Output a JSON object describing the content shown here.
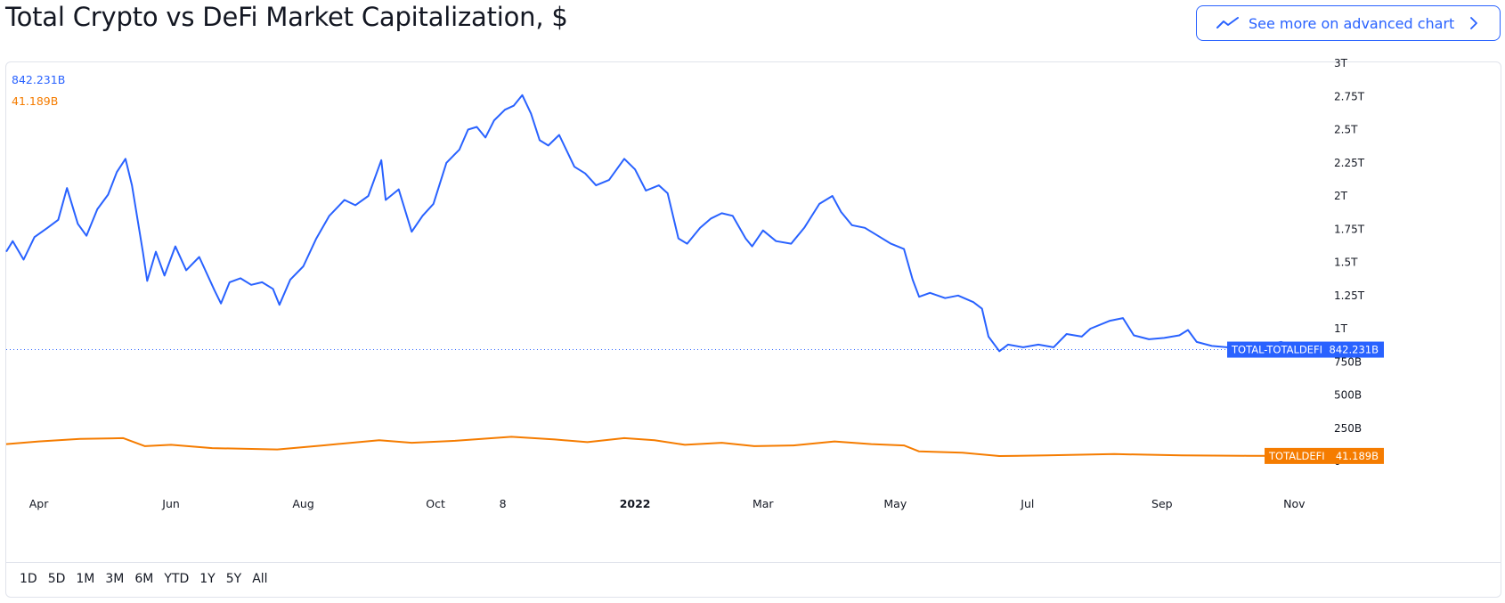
{
  "title": "Total Crypto vs DeFi Market Capitalization, $",
  "advanced_button": {
    "label": "See more on advanced chart",
    "icon": "trend-line-icon",
    "chevron": "chevron-right-icon"
  },
  "legend": {
    "total_value": "842.231B",
    "defi_value": "41.189B"
  },
  "colors": {
    "total": "#2962ff",
    "defi": "#f57c00",
    "grid": "#f0f3fa",
    "text": "#131722",
    "accent": "#2962ff"
  },
  "range_buttons": [
    "1D",
    "5D",
    "1M",
    "3M",
    "6M",
    "YTD",
    "1Y",
    "5Y",
    "All"
  ],
  "chart_data": {
    "type": "line",
    "title": "Total Crypto vs DeFi Market Capitalization, $",
    "ylim": [
      0,
      3000
    ],
    "y_unit": "B",
    "y_ticks": [
      {
        "value": 3000,
        "label": "3T"
      },
      {
        "value": 2750,
        "label": "2.75T"
      },
      {
        "value": 2500,
        "label": "2.5T"
      },
      {
        "value": 2250,
        "label": "2.25T"
      },
      {
        "value": 2000,
        "label": "2T"
      },
      {
        "value": 1750,
        "label": "1.75T"
      },
      {
        "value": 1500,
        "label": "1.5T"
      },
      {
        "value": 1250,
        "label": "1.25T"
      },
      {
        "value": 1000,
        "label": "1T"
      },
      {
        "value": 750,
        "label": "750B"
      },
      {
        "value": 500,
        "label": "500B"
      },
      {
        "value": 250,
        "label": "250B"
      },
      {
        "value": 0,
        "label": "0"
      }
    ],
    "x_ticks": [
      {
        "date": "2021-04-01",
        "label": "Apr"
      },
      {
        "date": "2021-06-01",
        "label": "Jun"
      },
      {
        "date": "2021-08-01",
        "label": "Aug"
      },
      {
        "date": "2021-10-01",
        "label": "Oct"
      },
      {
        "date": "2021-11-01",
        "label": "8"
      },
      {
        "date": "2022-01-01",
        "label": "2022",
        "bold": true
      },
      {
        "date": "2022-03-01",
        "label": "Mar"
      },
      {
        "date": "2022-05-01",
        "label": "May"
      },
      {
        "date": "2022-07-01",
        "label": "Jul"
      },
      {
        "date": "2022-09-01",
        "label": "Sep"
      },
      {
        "date": "2022-11-01",
        "label": "Nov"
      }
    ],
    "xlim": [
      "2021-03-17",
      "2022-11-14"
    ],
    "series": [
      {
        "name": "TOTAL-TOTALDEFI",
        "last_label": "842.231B",
        "points": [
          [
            "2021-03-17",
            1580
          ],
          [
            "2021-03-20",
            1660
          ],
          [
            "2021-03-25",
            1520
          ],
          [
            "2021-03-30",
            1690
          ],
          [
            "2021-04-05",
            1760
          ],
          [
            "2021-04-10",
            1820
          ],
          [
            "2021-04-14",
            2060
          ],
          [
            "2021-04-19",
            1790
          ],
          [
            "2021-04-23",
            1700
          ],
          [
            "2021-04-28",
            1900
          ],
          [
            "2021-05-03",
            2010
          ],
          [
            "2021-05-07",
            2180
          ],
          [
            "2021-05-11",
            2280
          ],
          [
            "2021-05-14",
            2080
          ],
          [
            "2021-05-19",
            1580
          ],
          [
            "2021-05-21",
            1360
          ],
          [
            "2021-05-25",
            1580
          ],
          [
            "2021-05-29",
            1400
          ],
          [
            "2021-06-03",
            1620
          ],
          [
            "2021-06-08",
            1440
          ],
          [
            "2021-06-14",
            1540
          ],
          [
            "2021-06-21",
            1290
          ],
          [
            "2021-06-24",
            1190
          ],
          [
            "2021-06-28",
            1350
          ],
          [
            "2021-07-03",
            1380
          ],
          [
            "2021-07-08",
            1330
          ],
          [
            "2021-07-13",
            1350
          ],
          [
            "2021-07-18",
            1300
          ],
          [
            "2021-07-21",
            1180
          ],
          [
            "2021-07-26",
            1370
          ],
          [
            "2021-08-01",
            1470
          ],
          [
            "2021-08-07",
            1680
          ],
          [
            "2021-08-13",
            1850
          ],
          [
            "2021-08-20",
            1970
          ],
          [
            "2021-08-25",
            1930
          ],
          [
            "2021-08-31",
            2000
          ],
          [
            "2021-09-06",
            2270
          ],
          [
            "2021-09-08",
            1970
          ],
          [
            "2021-09-14",
            2050
          ],
          [
            "2021-09-20",
            1730
          ],
          [
            "2021-09-25",
            1850
          ],
          [
            "2021-09-30",
            1940
          ],
          [
            "2021-10-06",
            2250
          ],
          [
            "2021-10-12",
            2350
          ],
          [
            "2021-10-16",
            2500
          ],
          [
            "2021-10-20",
            2520
          ],
          [
            "2021-10-24",
            2440
          ],
          [
            "2021-10-28",
            2570
          ],
          [
            "2021-11-02",
            2650
          ],
          [
            "2021-11-06",
            2680
          ],
          [
            "2021-11-10",
            2760
          ],
          [
            "2021-11-14",
            2620
          ],
          [
            "2021-11-18",
            2420
          ],
          [
            "2021-11-22",
            2380
          ],
          [
            "2021-11-27",
            2460
          ],
          [
            "2021-12-04",
            2220
          ],
          [
            "2021-12-09",
            2170
          ],
          [
            "2021-12-14",
            2080
          ],
          [
            "2021-12-20",
            2120
          ],
          [
            "2021-12-27",
            2280
          ],
          [
            "2022-01-01",
            2200
          ],
          [
            "2022-01-06",
            2040
          ],
          [
            "2022-01-12",
            2080
          ],
          [
            "2022-01-16",
            2020
          ],
          [
            "2022-01-21",
            1680
          ],
          [
            "2022-01-25",
            1640
          ],
          [
            "2022-01-31",
            1760
          ],
          [
            "2022-02-05",
            1830
          ],
          [
            "2022-02-10",
            1870
          ],
          [
            "2022-02-15",
            1850
          ],
          [
            "2022-02-21",
            1680
          ],
          [
            "2022-02-24",
            1620
          ],
          [
            "2022-03-01",
            1740
          ],
          [
            "2022-03-07",
            1660
          ],
          [
            "2022-03-14",
            1640
          ],
          [
            "2022-03-20",
            1760
          ],
          [
            "2022-03-27",
            1940
          ],
          [
            "2022-04-02",
            2000
          ],
          [
            "2022-04-06",
            1880
          ],
          [
            "2022-04-11",
            1780
          ],
          [
            "2022-04-17",
            1760
          ],
          [
            "2022-04-23",
            1700
          ],
          [
            "2022-04-29",
            1640
          ],
          [
            "2022-05-05",
            1600
          ],
          [
            "2022-05-09",
            1370
          ],
          [
            "2022-05-12",
            1240
          ],
          [
            "2022-05-17",
            1270
          ],
          [
            "2022-05-24",
            1230
          ],
          [
            "2022-05-30",
            1250
          ],
          [
            "2022-06-06",
            1200
          ],
          [
            "2022-06-10",
            1150
          ],
          [
            "2022-06-13",
            940
          ],
          [
            "2022-06-18",
            830
          ],
          [
            "2022-06-22",
            880
          ],
          [
            "2022-06-29",
            860
          ],
          [
            "2022-07-06",
            880
          ],
          [
            "2022-07-13",
            860
          ],
          [
            "2022-07-19",
            960
          ],
          [
            "2022-07-26",
            940
          ],
          [
            "2022-07-30",
            1000
          ],
          [
            "2022-08-08",
            1060
          ],
          [
            "2022-08-14",
            1080
          ],
          [
            "2022-08-19",
            950
          ],
          [
            "2022-08-26",
            920
          ],
          [
            "2022-09-02",
            930
          ],
          [
            "2022-09-09",
            950
          ],
          [
            "2022-09-13",
            990
          ],
          [
            "2022-09-17",
            900
          ],
          [
            "2022-09-24",
            870
          ],
          [
            "2022-10-01",
            860
          ],
          [
            "2022-10-07",
            890
          ],
          [
            "2022-10-13",
            850
          ],
          [
            "2022-10-20",
            880
          ],
          [
            "2022-10-26",
            900
          ],
          [
            "2022-10-31",
            875
          ],
          [
            "2022-11-03",
            860
          ],
          [
            "2022-11-05",
            842
          ]
        ]
      },
      {
        "name": "TOTALDEFI",
        "last_label": "41.189B",
        "points": [
          [
            "2021-03-17",
            130
          ],
          [
            "2021-04-01",
            150
          ],
          [
            "2021-04-20",
            170
          ],
          [
            "2021-05-10",
            175
          ],
          [
            "2021-05-20",
            115
          ],
          [
            "2021-06-01",
            125
          ],
          [
            "2021-06-20",
            100
          ],
          [
            "2021-07-20",
            90
          ],
          [
            "2021-08-10",
            120
          ],
          [
            "2021-09-05",
            160
          ],
          [
            "2021-09-20",
            140
          ],
          [
            "2021-10-10",
            155
          ],
          [
            "2021-11-05",
            185
          ],
          [
            "2021-11-25",
            165
          ],
          [
            "2021-12-10",
            145
          ],
          [
            "2021-12-27",
            175
          ],
          [
            "2022-01-10",
            160
          ],
          [
            "2022-01-24",
            125
          ],
          [
            "2022-02-10",
            140
          ],
          [
            "2022-02-25",
            115
          ],
          [
            "2022-03-15",
            120
          ],
          [
            "2022-04-03",
            150
          ],
          [
            "2022-04-20",
            130
          ],
          [
            "2022-05-05",
            120
          ],
          [
            "2022-05-12",
            75
          ],
          [
            "2022-06-01",
            65
          ],
          [
            "2022-06-18",
            40
          ],
          [
            "2022-07-10",
            45
          ],
          [
            "2022-08-10",
            55
          ],
          [
            "2022-09-10",
            45
          ],
          [
            "2022-10-10",
            42
          ],
          [
            "2022-11-05",
            41
          ]
        ]
      }
    ]
  }
}
